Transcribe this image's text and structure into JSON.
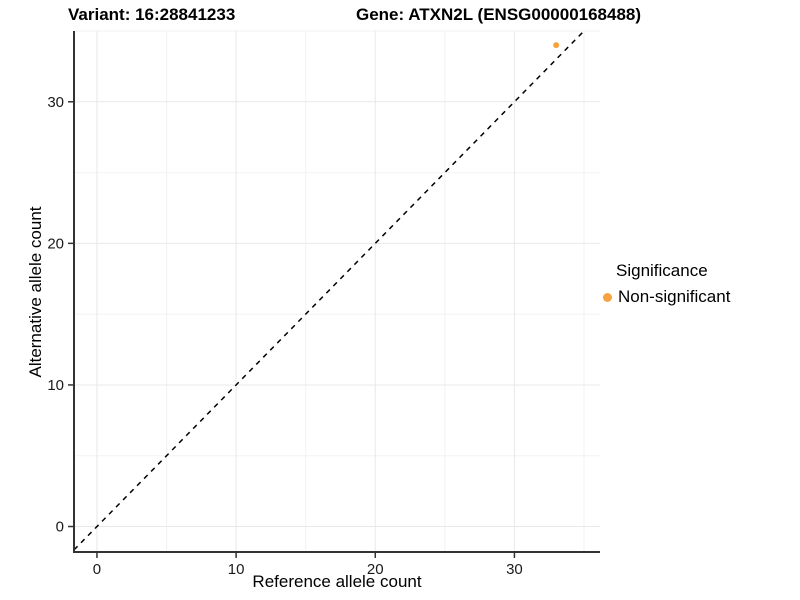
{
  "header": {
    "variant_title": "Variant: 16:28841233",
    "gene_title": "Gene: ATXN2L (ENSG00000168488)"
  },
  "axes": {
    "x_label": "Reference allele count",
    "y_label": "Alternative allele count"
  },
  "legend": {
    "title": "Significance",
    "position": "right",
    "items": [
      {
        "label": "Non-significant",
        "color": "#F9A242",
        "marker": "circle"
      }
    ]
  },
  "chart_data": {
    "type": "scatter",
    "title": "Variant: 16:28841233  /  Gene: ATXN2L (ENSG00000168488)",
    "xlabel": "Reference allele count",
    "ylabel": "Alternative allele count",
    "xlim": [
      -1.65,
      36.15
    ],
    "ylim": [
      -1.8,
      35.0
    ],
    "x_ticks": [
      0,
      10,
      20,
      30
    ],
    "y_ticks": [
      0,
      10,
      20,
      30
    ],
    "x_minor_ticks": [
      5,
      15,
      25,
      35
    ],
    "y_minor_ticks": [
      5,
      15,
      25,
      35
    ],
    "grid": true,
    "legend_position": "right",
    "series": [
      {
        "name": "Non-significant",
        "color": "#F9A242",
        "points": [
          {
            "x": 33,
            "y": 34
          }
        ]
      }
    ],
    "reference_line": {
      "type": "identity",
      "slope": 1,
      "intercept": 0,
      "style": "dashed",
      "color": "#000000"
    }
  },
  "colors": {
    "background": "#FFFFFF",
    "grid_major": "#E8E8E8",
    "grid_minor": "#F2F2F2",
    "axis_line": "#333333",
    "tick_mark": "#333333",
    "tick_text": "#1A1A1A",
    "point_orange": "#F9A242",
    "dashed_line": "#000000"
  }
}
